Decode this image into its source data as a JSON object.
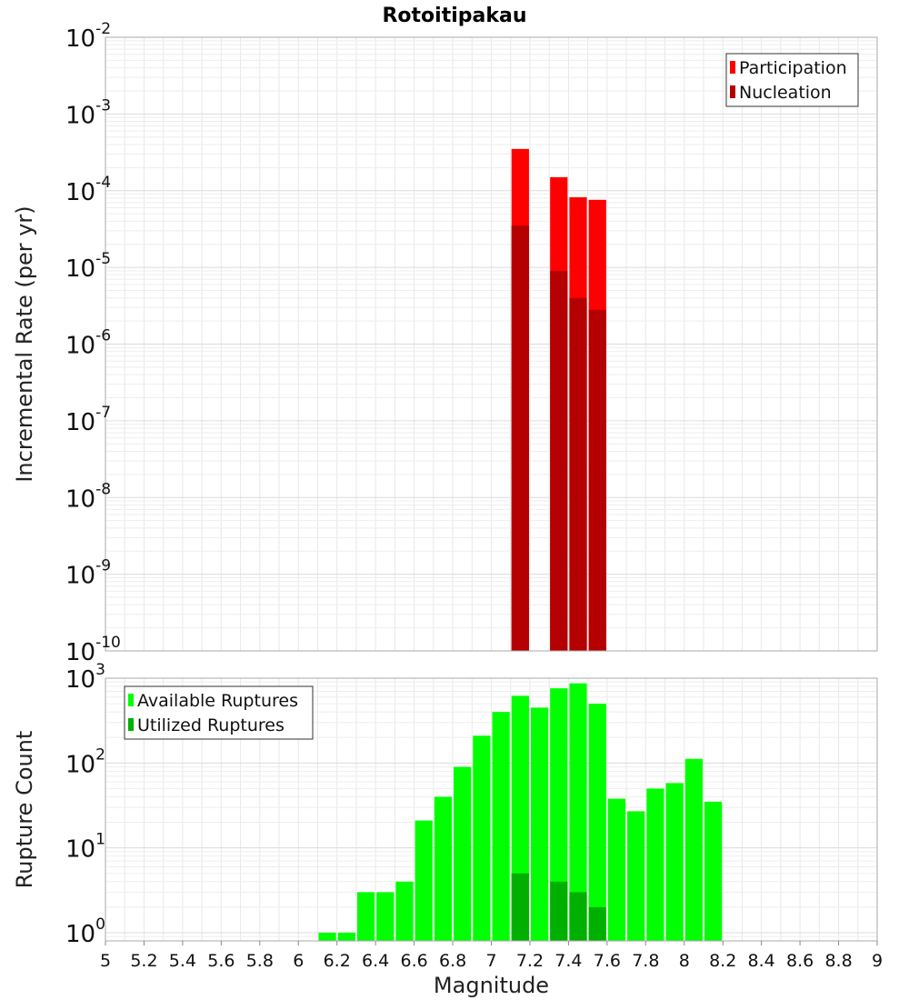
{
  "chart_data": [
    {
      "type": "bar",
      "title": "Rotoitipakau",
      "ylabel": "Incremental Rate (per yr)",
      "xlabel": "",
      "xlim": [
        5,
        9
      ],
      "ylim": [
        1e-10,
        0.01
      ],
      "yscale": "log",
      "y_ticks": [
        {
          "base": "10",
          "exp": "-2"
        },
        {
          "base": "10",
          "exp": "-3"
        },
        {
          "base": "10",
          "exp": "-4"
        },
        {
          "base": "10",
          "exp": "-5"
        },
        {
          "base": "10",
          "exp": "-6"
        },
        {
          "base": "10",
          "exp": "-7"
        },
        {
          "base": "10",
          "exp": "-8"
        },
        {
          "base": "10",
          "exp": "-9"
        },
        {
          "base": "10",
          "exp": "-10"
        }
      ],
      "bar_width": 0.1,
      "grid": true,
      "legend_position": "top-right",
      "series": [
        {
          "name": "Participation",
          "color": "#ff0000",
          "points": [
            [
              7.15,
              0.00035
            ],
            [
              7.35,
              0.00015
            ],
            [
              7.45,
              8.2e-05
            ],
            [
              7.55,
              7.6e-05
            ]
          ]
        },
        {
          "name": "Nucleation",
          "color": "#b40000",
          "points": [
            [
              7.15,
              3.5e-05
            ],
            [
              7.35,
              9e-06
            ],
            [
              7.45,
              4e-06
            ],
            [
              7.55,
              2.8e-06
            ]
          ]
        }
      ]
    },
    {
      "type": "bar",
      "title": "",
      "ylabel": "Rupture Count",
      "xlabel": "Magnitude",
      "xlim": [
        5,
        9
      ],
      "ylim": [
        0.8,
        1000
      ],
      "yscale": "log",
      "y_ticks": [
        {
          "base": "10",
          "exp": "3"
        },
        {
          "base": "10",
          "exp": "2"
        },
        {
          "base": "10",
          "exp": "1"
        },
        {
          "base": "10",
          "exp": "0"
        }
      ],
      "x_ticks": [
        "5",
        "5.2",
        "5.4",
        "5.6",
        "5.8",
        "6",
        "6.2",
        "6.4",
        "6.6",
        "6.8",
        "7",
        "7.2",
        "7.4",
        "7.6",
        "7.8",
        "8",
        "8.2",
        "8.4",
        "8.6",
        "8.8",
        "9"
      ],
      "bar_width": 0.1,
      "grid": true,
      "legend_position": "top-left",
      "series": [
        {
          "name": "Available Ruptures",
          "color": "#00ff00",
          "points": [
            [
              6.15,
              1
            ],
            [
              6.25,
              1
            ],
            [
              6.35,
              3
            ],
            [
              6.45,
              3
            ],
            [
              6.55,
              4
            ],
            [
              6.65,
              21
            ],
            [
              6.75,
              40
            ],
            [
              6.85,
              90
            ],
            [
              6.95,
              210
            ],
            [
              7.05,
              400
            ],
            [
              7.15,
              620
            ],
            [
              7.25,
              450
            ],
            [
              7.35,
              760
            ],
            [
              7.45,
              870
            ],
            [
              7.55,
              500
            ],
            [
              7.65,
              38
            ],
            [
              7.75,
              27
            ],
            [
              7.85,
              50
            ],
            [
              7.95,
              58
            ],
            [
              8.05,
              112
            ],
            [
              8.15,
              35
            ]
          ]
        },
        {
          "name": "Utilized Ruptures",
          "color": "#00b000",
          "points": [
            [
              7.15,
              5
            ],
            [
              7.35,
              4
            ],
            [
              7.45,
              3
            ],
            [
              7.55,
              2
            ]
          ]
        }
      ]
    }
  ]
}
